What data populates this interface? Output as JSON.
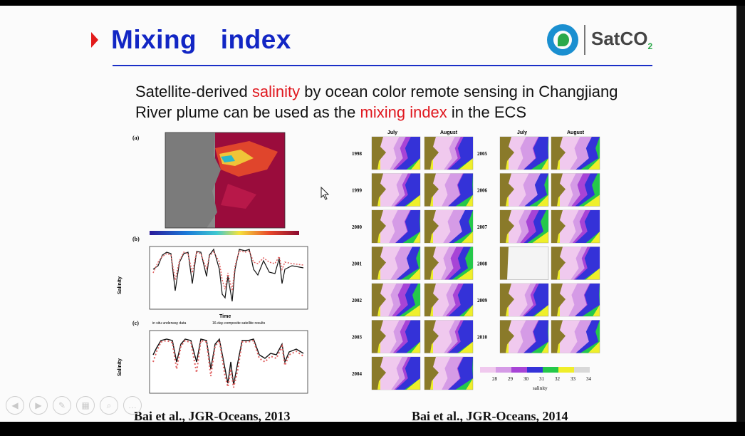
{
  "slide": {
    "title": "Mixing  index",
    "logo_text": "SatCO",
    "logo_sub": "2",
    "para_line1_a": "Satellite-derived ",
    "para_line1_red": "salinity",
    "para_line1_b": " by ocean color remote sensing  in Changjiang",
    "para_line2_a": "River plume can be used as the ",
    "para_line2_red": "mixing index",
    "para_line2_b": " in the ECS",
    "caption_left": "Bai et al., JGR-Oceans, 2013",
    "caption_right": "Bai et al., JGR-Oceans, 2014"
  },
  "figure_left": {
    "panel_a_label": "(a)",
    "panel_b_label": "(b)",
    "panel_c_label": "(c)",
    "ylabel": "Salinity",
    "xlabel": "Time",
    "legend_c_1": "in situ underway data",
    "legend_c_2": "16-day-composite satellite results"
  },
  "figure_right": {
    "col_july": "July",
    "col_august": "August",
    "years_left": [
      "1998",
      "1999",
      "2000",
      "2001",
      "2002",
      "2003",
      "2004"
    ],
    "years_right": [
      "2005",
      "2006",
      "2007",
      "2008",
      "2009",
      "2010"
    ],
    "colorbar_ticks": [
      "28",
      "29",
      "30",
      "31",
      "32",
      "33",
      "34"
    ],
    "colorbar_label": "salinity"
  },
  "controls": [
    "prev-icon",
    "next-icon",
    "pen-icon",
    "slides-icon",
    "zoom-icon",
    "more-icon"
  ]
}
